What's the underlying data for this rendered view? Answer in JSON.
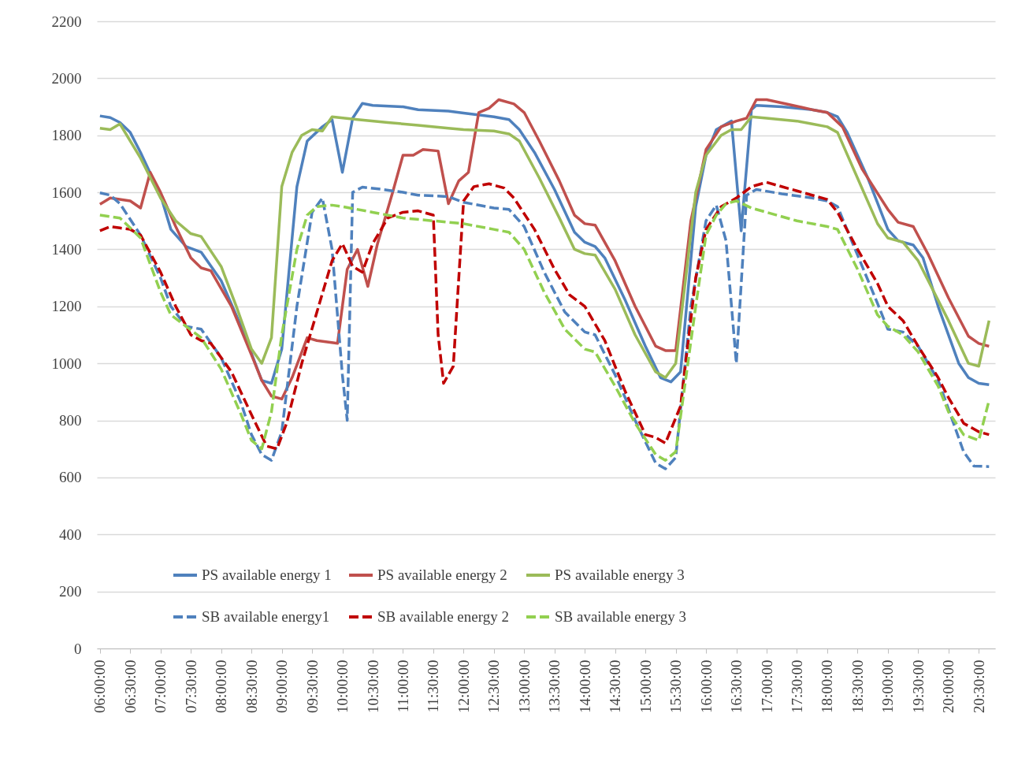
{
  "chart_data": {
    "type": "line",
    "xlim": [
      5.95,
      20.77
    ],
    "ylim": [
      0,
      2200
    ],
    "yticks": [
      0,
      200,
      400,
      600,
      800,
      1000,
      1200,
      1400,
      1600,
      1800,
      2000,
      2200
    ],
    "xticks": [
      {
        "value": 6,
        "label": "06:00:00"
      },
      {
        "value": 6.5,
        "label": "06:30:00"
      },
      {
        "value": 7,
        "label": "07:00:00"
      },
      {
        "value": 7.5,
        "label": "07:30:00"
      },
      {
        "value": 8,
        "label": "08:00:00"
      },
      {
        "value": 8.5,
        "label": "08:30:00"
      },
      {
        "value": 9,
        "label": "09:00:00"
      },
      {
        "value": 9.5,
        "label": "09:30:00"
      },
      {
        "value": 10,
        "label": "10:00:00"
      },
      {
        "value": 10.5,
        "label": "10:30:00"
      },
      {
        "value": 11,
        "label": "11:00:00"
      },
      {
        "value": 11.5,
        "label": "11:30:00"
      },
      {
        "value": 12,
        "label": "12:00:00"
      },
      {
        "value": 12.5,
        "label": "12:30:00"
      },
      {
        "value": 13,
        "label": "13:00:00"
      },
      {
        "value": 13.5,
        "label": "13:30:00"
      },
      {
        "value": 14,
        "label": "14:00:00"
      },
      {
        "value": 14.5,
        "label": "14:30:00"
      },
      {
        "value": 15,
        "label": "15:00:00"
      },
      {
        "value": 15.5,
        "label": "15:30:00"
      },
      {
        "value": 16,
        "label": "16:00:00"
      },
      {
        "value": 16.5,
        "label": "16:30:00"
      },
      {
        "value": 17,
        "label": "17:00:00"
      },
      {
        "value": 17.5,
        "label": "17:30:00"
      },
      {
        "value": 18,
        "label": "18:00:00"
      },
      {
        "value": 18.5,
        "label": "18:30:00"
      },
      {
        "value": 19,
        "label": "19:00:00"
      },
      {
        "value": 19.5,
        "label": "19:30:00"
      },
      {
        "value": 20,
        "label": "20:00:00"
      },
      {
        "value": 20.5,
        "label": "20:30:00"
      }
    ],
    "grid": "y",
    "legend": "bottom",
    "series": [
      {
        "name": "PS available energy 1",
        "color": "#4f81bd",
        "line_style": "solid",
        "x": [
          6.0,
          6.17,
          6.33,
          6.5,
          6.67,
          7.0,
          7.17,
          7.42,
          7.67,
          8.0,
          8.33,
          8.67,
          8.83,
          9.0,
          9.25,
          9.42,
          9.67,
          9.83,
          10.0,
          10.17,
          10.33,
          10.5,
          11.0,
          11.25,
          11.75,
          12.0,
          12.5,
          12.75,
          12.92,
          13.17,
          13.5,
          13.83,
          14.0,
          14.17,
          14.33,
          14.67,
          15.0,
          15.25,
          15.42,
          15.58,
          15.83,
          16.0,
          16.17,
          16.42,
          16.58,
          16.75,
          16.83,
          17.25,
          17.75,
          18.0,
          18.17,
          18.33,
          18.67,
          19.0,
          19.17,
          19.42,
          19.58,
          19.83,
          20.17,
          20.33,
          20.5,
          20.67
        ],
        "values": [
          1868,
          1862,
          1845,
          1810,
          1740,
          1590,
          1470,
          1410,
          1390,
          1290,
          1130,
          940,
          930,
          1050,
          1620,
          1780,
          1830,
          1855,
          1670,
          1860,
          1912,
          1905,
          1900,
          1890,
          1885,
          1878,
          1865,
          1855,
          1820,
          1740,
          1610,
          1460,
          1425,
          1410,
          1370,
          1220,
          1060,
          950,
          935,
          970,
          1550,
          1730,
          1820,
          1850,
          1465,
          1890,
          1905,
          1900,
          1890,
          1880,
          1865,
          1810,
          1650,
          1470,
          1430,
          1415,
          1370,
          1200,
          1000,
          950,
          930,
          925
        ]
      },
      {
        "name": "PS available energy 2",
        "color": "#c0504d",
        "line_style": "solid",
        "x": [
          6.0,
          6.17,
          6.5,
          6.67,
          6.83,
          7.0,
          7.25,
          7.5,
          7.67,
          7.83,
          8.17,
          8.5,
          8.67,
          8.83,
          9.0,
          9.17,
          9.42,
          9.58,
          9.92,
          10.08,
          10.25,
          10.42,
          10.58,
          10.83,
          11.0,
          11.17,
          11.33,
          11.58,
          11.75,
          11.92,
          12.08,
          12.25,
          12.42,
          12.58,
          12.83,
          13.0,
          13.25,
          13.58,
          13.83,
          14.0,
          14.17,
          14.5,
          14.83,
          15.17,
          15.33,
          15.5,
          15.75,
          16.0,
          16.25,
          16.5,
          16.67,
          16.83,
          17.0,
          17.33,
          17.75,
          18.0,
          18.25,
          18.58,
          19.0,
          19.17,
          19.42,
          19.67,
          20.0,
          20.33,
          20.5,
          20.67
        ],
        "values": [
          1558,
          1580,
          1570,
          1545,
          1670,
          1600,
          1480,
          1370,
          1335,
          1325,
          1200,
          1030,
          940,
          885,
          875,
          950,
          1090,
          1080,
          1070,
          1330,
          1400,
          1270,
          1420,
          1600,
          1730,
          1730,
          1750,
          1745,
          1560,
          1640,
          1670,
          1880,
          1895,
          1925,
          1910,
          1880,
          1780,
          1640,
          1520,
          1490,
          1485,
          1360,
          1200,
          1060,
          1045,
          1045,
          1500,
          1750,
          1830,
          1850,
          1860,
          1925,
          1925,
          1910,
          1890,
          1880,
          1830,
          1680,
          1540,
          1495,
          1480,
          1380,
          1230,
          1095,
          1070,
          1060
        ]
      },
      {
        "name": "PS available energy 3",
        "color": "#9bbb59",
        "line_style": "solid",
        "x": [
          6.0,
          6.17,
          6.33,
          6.67,
          7.0,
          7.25,
          7.5,
          7.67,
          8.0,
          8.25,
          8.5,
          8.67,
          8.83,
          9.0,
          9.17,
          9.33,
          9.5,
          9.67,
          9.83,
          10.25,
          10.75,
          11.25,
          11.75,
          12.0,
          12.5,
          12.75,
          12.92,
          13.25,
          13.58,
          13.83,
          14.0,
          14.17,
          14.5,
          14.83,
          15.17,
          15.33,
          15.5,
          15.83,
          16.0,
          16.25,
          16.42,
          16.58,
          16.75,
          17.0,
          17.5,
          17.75,
          18.0,
          18.17,
          18.5,
          18.83,
          19.0,
          19.25,
          19.5,
          20.0,
          20.33,
          20.5,
          20.67
        ],
        "values": [
          1825,
          1820,
          1840,
          1720,
          1580,
          1500,
          1455,
          1445,
          1340,
          1200,
          1050,
          1000,
          1090,
          1620,
          1740,
          1800,
          1820,
          1815,
          1865,
          1855,
          1845,
          1835,
          1825,
          1820,
          1815,
          1805,
          1780,
          1650,
          1510,
          1400,
          1385,
          1380,
          1260,
          1100,
          970,
          950,
          1000,
          1600,
          1730,
          1800,
          1820,
          1820,
          1865,
          1860,
          1850,
          1840,
          1830,
          1810,
          1650,
          1490,
          1440,
          1425,
          1360,
          1150,
          1000,
          990,
          1150
        ]
      },
      {
        "name": "SB available energy1",
        "color": "#4f81bd",
        "line_style": "dashed",
        "x": [
          6.0,
          6.17,
          6.33,
          6.67,
          7.0,
          7.17,
          7.42,
          7.67,
          8.0,
          8.33,
          8.5,
          8.67,
          8.83,
          9.0,
          9.25,
          9.5,
          9.67,
          9.83,
          10.0,
          10.08,
          10.17,
          10.33,
          10.67,
          11.0,
          11.25,
          11.75,
          12.0,
          12.5,
          12.75,
          13.0,
          13.33,
          13.67,
          14.0,
          14.17,
          14.5,
          14.83,
          15.17,
          15.33,
          15.5,
          15.75,
          16.0,
          16.17,
          16.33,
          16.5,
          16.67,
          16.83,
          17.25,
          17.75,
          18.0,
          18.17,
          18.5,
          18.83,
          19.0,
          19.25,
          19.5,
          19.83,
          20.0,
          20.25,
          20.42,
          20.67
        ],
        "values": [
          1598,
          1590,
          1560,
          1450,
          1300,
          1200,
          1130,
          1120,
          1020,
          860,
          750,
          680,
          660,
          760,
          1200,
          1530,
          1580,
          1400,
          960,
          800,
          1600,
          1618,
          1610,
          1600,
          1590,
          1585,
          1565,
          1545,
          1540,
          1480,
          1320,
          1180,
          1110,
          1100,
          960,
          800,
          650,
          630,
          670,
          1200,
          1500,
          1555,
          1430,
          1000,
          1590,
          1610,
          1595,
          1580,
          1570,
          1550,
          1380,
          1210,
          1120,
          1110,
          1060,
          940,
          840,
          690,
          640,
          638
        ]
      },
      {
        "name": "SB available energy 2",
        "color": "#c00000",
        "line_style": "dashed",
        "x": [
          6.0,
          6.17,
          6.33,
          6.5,
          6.67,
          7.0,
          7.25,
          7.5,
          7.67,
          7.83,
          8.17,
          8.5,
          8.75,
          8.92,
          9.08,
          9.33,
          9.58,
          9.83,
          10.0,
          10.17,
          10.33,
          10.5,
          10.75,
          11.0,
          11.25,
          11.5,
          11.58,
          11.67,
          11.83,
          12.0,
          12.17,
          12.42,
          12.67,
          12.83,
          13.17,
          13.5,
          13.75,
          14.0,
          14.33,
          14.67,
          15.0,
          15.17,
          15.33,
          15.58,
          15.83,
          16.0,
          16.25,
          16.5,
          16.75,
          17.0,
          17.5,
          17.75,
          18.0,
          18.17,
          18.5,
          18.83,
          19.0,
          19.25,
          19.5,
          19.83,
          20.0,
          20.25,
          20.5,
          20.67
        ],
        "values": [
          1465,
          1480,
          1475,
          1470,
          1450,
          1320,
          1200,
          1100,
          1080,
          1070,
          970,
          820,
          710,
          700,
          790,
          1000,
          1180,
          1360,
          1420,
          1340,
          1320,
          1420,
          1510,
          1530,
          1535,
          1520,
          1100,
          930,
          990,
          1570,
          1620,
          1630,
          1615,
          1580,
          1470,
          1330,
          1240,
          1200,
          1080,
          900,
          750,
          740,
          720,
          850,
          1300,
          1470,
          1550,
          1580,
          1620,
          1635,
          1605,
          1590,
          1575,
          1530,
          1400,
          1280,
          1200,
          1150,
          1060,
          950,
          880,
          790,
          760,
          750
        ]
      },
      {
        "name": "SB available energy 3",
        "color": "#92d050",
        "line_style": "dashed",
        "x": [
          6.0,
          6.17,
          6.33,
          6.67,
          7.0,
          7.17,
          7.42,
          7.67,
          8.0,
          8.33,
          8.5,
          8.67,
          8.83,
          9.0,
          9.25,
          9.42,
          9.58,
          9.83,
          10.0,
          10.5,
          11.0,
          11.5,
          11.75,
          12.0,
          12.5,
          12.75,
          13.0,
          13.33,
          13.67,
          14.0,
          14.17,
          14.5,
          14.83,
          15.17,
          15.33,
          15.5,
          15.83,
          16.0,
          16.17,
          16.33,
          16.5,
          16.75,
          17.0,
          17.5,
          18.0,
          18.17,
          18.5,
          18.83,
          19.0,
          19.25,
          19.5,
          19.83,
          20.0,
          20.25,
          20.5,
          20.67
        ],
        "values": [
          1520,
          1515,
          1510,
          1440,
          1250,
          1170,
          1130,
          1090,
          980,
          820,
          730,
          700,
          830,
          1100,
          1400,
          1520,
          1550,
          1555,
          1550,
          1530,
          1510,
          1500,
          1495,
          1490,
          1470,
          1460,
          1400,
          1250,
          1120,
          1050,
          1040,
          920,
          790,
          680,
          660,
          690,
          1200,
          1450,
          1520,
          1560,
          1570,
          1545,
          1530,
          1500,
          1480,
          1470,
          1330,
          1170,
          1130,
          1100,
          1040,
          920,
          830,
          750,
          730,
          870
        ]
      }
    ]
  }
}
